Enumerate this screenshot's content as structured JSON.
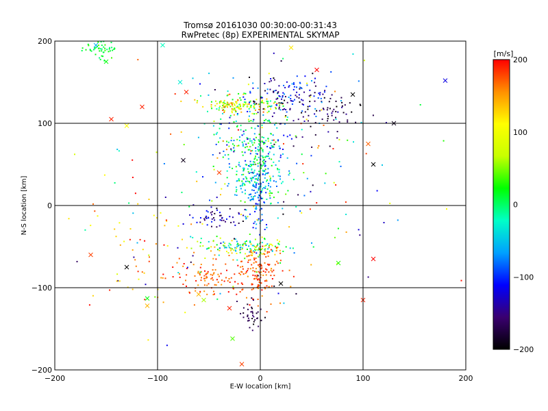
{
  "chart_data": {
    "type": "scatter",
    "title": "Tromsø 20161030 00:30:00-00:31:43",
    "subtitle": "RwPretec (8p) EXPERIMENTAL SKYMAP",
    "xlabel": "E-W location [km]",
    "ylabel": "N-S location [km]",
    "xlim": [
      -200,
      200
    ],
    "ylim": [
      -200,
      200
    ],
    "xticks": [
      -200,
      -100,
      0,
      100,
      200
    ],
    "yticks": [
      -200,
      -100,
      0,
      100,
      200
    ],
    "xtick_labels": [
      "−200",
      "−100",
      "0",
      "100",
      "200"
    ],
    "ytick_labels": [
      "−200",
      "−100",
      "0",
      "100",
      "200"
    ],
    "grid": true,
    "grid_lines_x": [
      -100,
      0,
      100
    ],
    "grid_lines_y": [
      -100,
      0,
      100
    ],
    "colorbar": {
      "label": "[m/s]",
      "range": [
        -200,
        200
      ],
      "ticks": [
        200,
        100,
        0,
        -100,
        -200
      ],
      "tick_labels": [
        "200",
        "100",
        "0",
        "−100",
        "−200"
      ],
      "colors": [
        "#000000",
        "#3a0070",
        "#0000ff",
        "#00a0ff",
        "#00ffc8",
        "#00ff00",
        "#c8ff00",
        "#ffff00",
        "#ff9000",
        "#ff0000"
      ]
    },
    "clusters": [
      {
        "center": [
          -155,
          192
        ],
        "spread": [
          9,
          7
        ],
        "count": 55,
        "vel_range": [
          -10,
          40
        ]
      },
      {
        "center": [
          -20,
          122
        ],
        "spread": [
          18,
          5
        ],
        "count": 160,
        "vel_range": [
          -20,
          180
        ]
      },
      {
        "center": [
          30,
          130
        ],
        "spread": [
          22,
          14
        ],
        "count": 130,
        "vel_range": [
          -200,
          -60
        ]
      },
      {
        "center": [
          65,
          112
        ],
        "spread": [
          18,
          14
        ],
        "count": 60,
        "vel_range": [
          -200,
          -140
        ]
      },
      {
        "center": [
          -3,
          75
        ],
        "spread": [
          20,
          22
        ],
        "count": 170,
        "vel_range": [
          -130,
          40
        ]
      },
      {
        "center": [
          -5,
          35
        ],
        "spread": [
          14,
          18
        ],
        "count": 190,
        "vel_range": [
          -90,
          40
        ]
      },
      {
        "center": [
          -2,
          5
        ],
        "spread": [
          4,
          20
        ],
        "count": 70,
        "vel_range": [
          -120,
          -40
        ]
      },
      {
        "center": [
          -15,
          -50
        ],
        "spread": [
          20,
          6
        ],
        "count": 150,
        "vel_range": [
          -80,
          150
        ]
      },
      {
        "center": [
          -3,
          -80
        ],
        "spread": [
          12,
          16
        ],
        "count": 150,
        "vel_range": [
          150,
          200
        ]
      },
      {
        "center": [
          -55,
          -88
        ],
        "spread": [
          17,
          11
        ],
        "count": 90,
        "vel_range": [
          150,
          200
        ]
      },
      {
        "center": [
          -45,
          -15
        ],
        "spread": [
          15,
          5
        ],
        "count": 50,
        "vel_range": [
          -200,
          -100
        ]
      },
      {
        "center": [
          -8,
          -135
        ],
        "spread": [
          6,
          10
        ],
        "count": 35,
        "vel_range": [
          -200,
          -150
        ]
      },
      {
        "center": [
          -60,
          20
        ],
        "spread": [
          60,
          80
        ],
        "count": 110,
        "vel_range": [
          -200,
          200
        ]
      },
      {
        "center": [
          40,
          60
        ],
        "spread": [
          55,
          70
        ],
        "count": 120,
        "vel_range": [
          -200,
          200
        ]
      },
      {
        "center": [
          -120,
          -50
        ],
        "spread": [
          25,
          40
        ],
        "count": 45,
        "vel_range": [
          100,
          200
        ]
      }
    ],
    "crosses": [
      {
        "x": 180,
        "y": 152,
        "v": -120
      },
      {
        "x": -110,
        "y": -113,
        "v": 20
      },
      {
        "x": -110,
        "y": -122,
        "v": 140
      },
      {
        "x": -18,
        "y": -193,
        "v": 180
      },
      {
        "x": -27,
        "y": -162,
        "v": 40
      },
      {
        "x": 30,
        "y": 192,
        "v": 120
      },
      {
        "x": 100,
        "y": -115,
        "v": 190
      },
      {
        "x": 76,
        "y": -70,
        "v": 30
      },
      {
        "x": 110,
        "y": -65,
        "v": 200
      },
      {
        "x": -130,
        "y": -75,
        "v": -200
      },
      {
        "x": -165,
        "y": -60,
        "v": 180
      },
      {
        "x": -160,
        "y": 195,
        "v": -60
      },
      {
        "x": -95,
        "y": 195,
        "v": -20
      },
      {
        "x": -78,
        "y": 150,
        "v": -30
      },
      {
        "x": -72,
        "y": 138,
        "v": 190
      },
      {
        "x": -55,
        "y": -115,
        "v": 60
      },
      {
        "x": -60,
        "y": -108,
        "v": 140
      },
      {
        "x": 110,
        "y": 50,
        "v": -200
      },
      {
        "x": 130,
        "y": 100,
        "v": -190
      },
      {
        "x": 20,
        "y": -95,
        "v": -200
      },
      {
        "x": -145,
        "y": 105,
        "v": 190
      },
      {
        "x": -130,
        "y": 97,
        "v": 110
      },
      {
        "x": -75,
        "y": 55,
        "v": -190
      },
      {
        "x": -40,
        "y": 40,
        "v": 180
      },
      {
        "x": -150,
        "y": 175,
        "v": 20
      },
      {
        "x": 55,
        "y": 165,
        "v": 200
      },
      {
        "x": 90,
        "y": 135,
        "v": -200
      },
      {
        "x": -115,
        "y": 120,
        "v": 190
      },
      {
        "x": 105,
        "y": 75,
        "v": 170
      },
      {
        "x": -30,
        "y": -125,
        "v": 190
      }
    ]
  }
}
